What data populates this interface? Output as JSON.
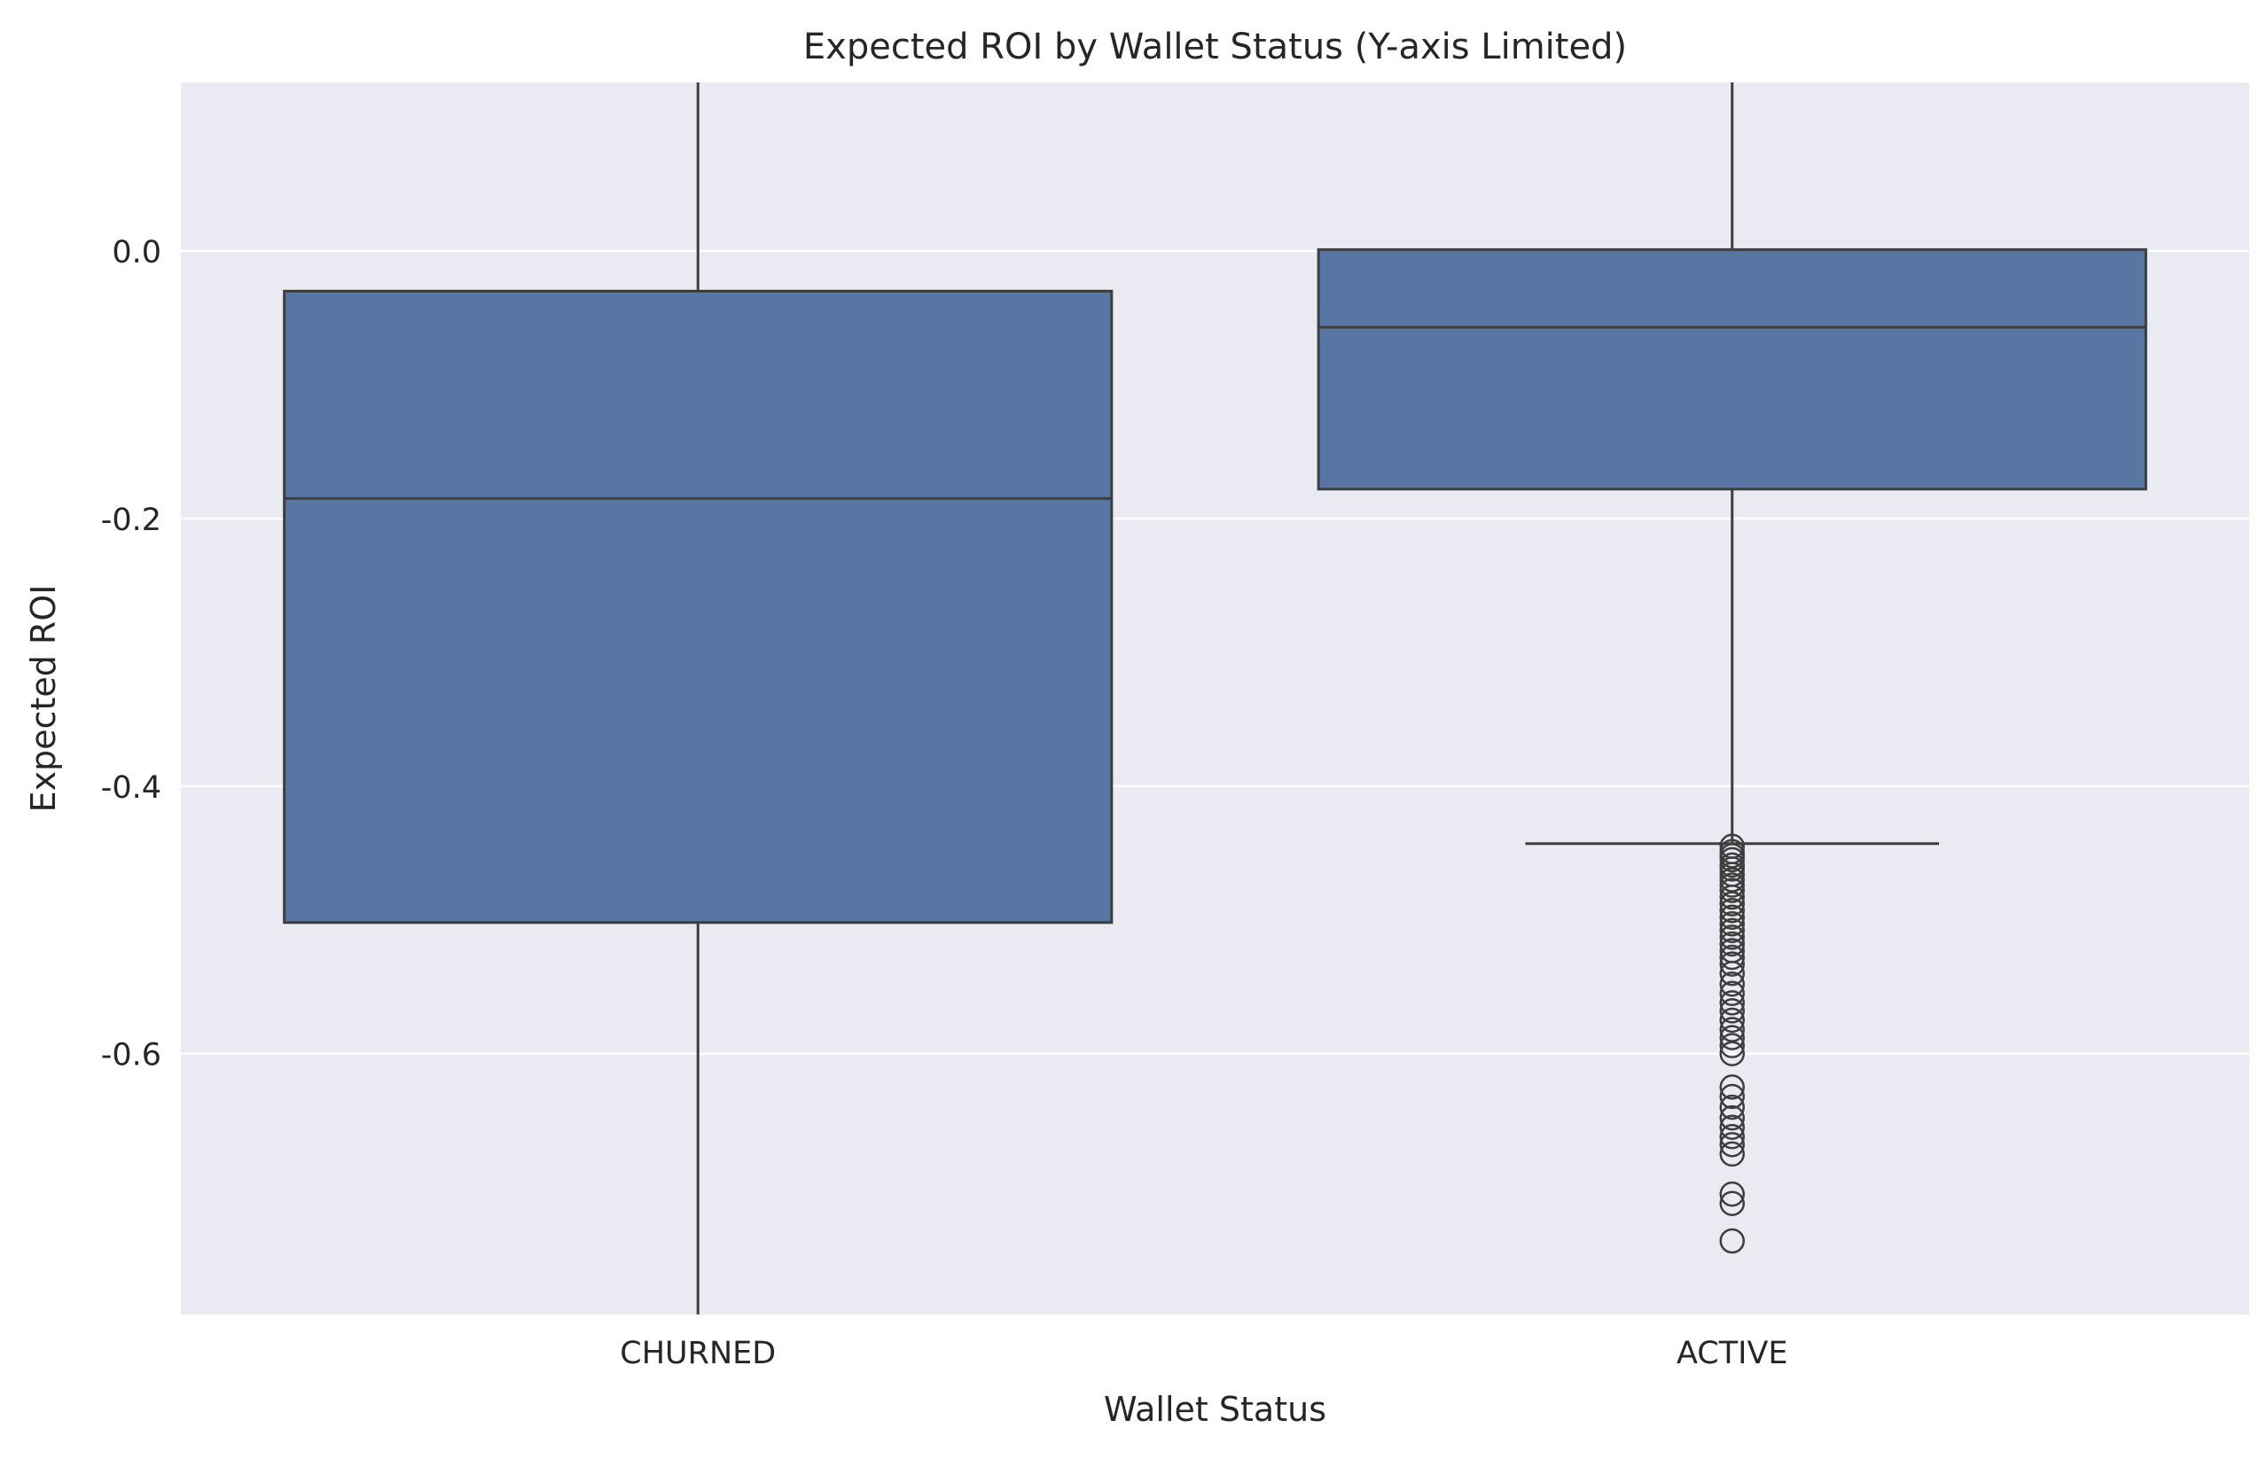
{
  "chart_data": {
    "type": "box",
    "title": "Expected ROI by Wallet Status (Y-axis Limited)",
    "xlabel": "Wallet Status",
    "ylabel": "Expected ROI",
    "categories": [
      "CHURNED",
      "ACTIVE"
    ],
    "ylim": [
      -0.795,
      0.126
    ],
    "yticks": [
      0.0,
      -0.2,
      -0.4,
      -0.6
    ],
    "ytick_labels": [
      "0.0",
      "-0.2",
      "-0.4",
      "-0.6"
    ],
    "grid": true,
    "box_color": "#5875a4",
    "edge_color": "#3e3e3e",
    "plot_background": "#eaeaf2",
    "boxes": [
      {
        "category": "CHURNED",
        "q1": -0.502,
        "median": -0.185,
        "q3": -0.03,
        "whisker_low": -0.795,
        "whisker_high": 0.126,
        "outliers": []
      },
      {
        "category": "ACTIVE",
        "q1": -0.178,
        "median": -0.057,
        "q3": 0.001,
        "whisker_low": -0.443,
        "whisker_high": 0.126,
        "outliers": [
          -0.445,
          -0.449,
          -0.452,
          -0.455,
          -0.459,
          -0.462,
          -0.466,
          -0.47,
          -0.474,
          -0.478,
          -0.483,
          -0.488,
          -0.493,
          -0.498,
          -0.503,
          -0.508,
          -0.513,
          -0.518,
          -0.523,
          -0.528,
          -0.533,
          -0.54,
          -0.548,
          -0.555,
          -0.562,
          -0.568,
          -0.575,
          -0.582,
          -0.588,
          -0.594,
          -0.6,
          -0.625,
          -0.632,
          -0.64,
          -0.648,
          -0.655,
          -0.662,
          -0.668,
          -0.675,
          -0.705,
          -0.712,
          -0.74
        ]
      }
    ]
  }
}
